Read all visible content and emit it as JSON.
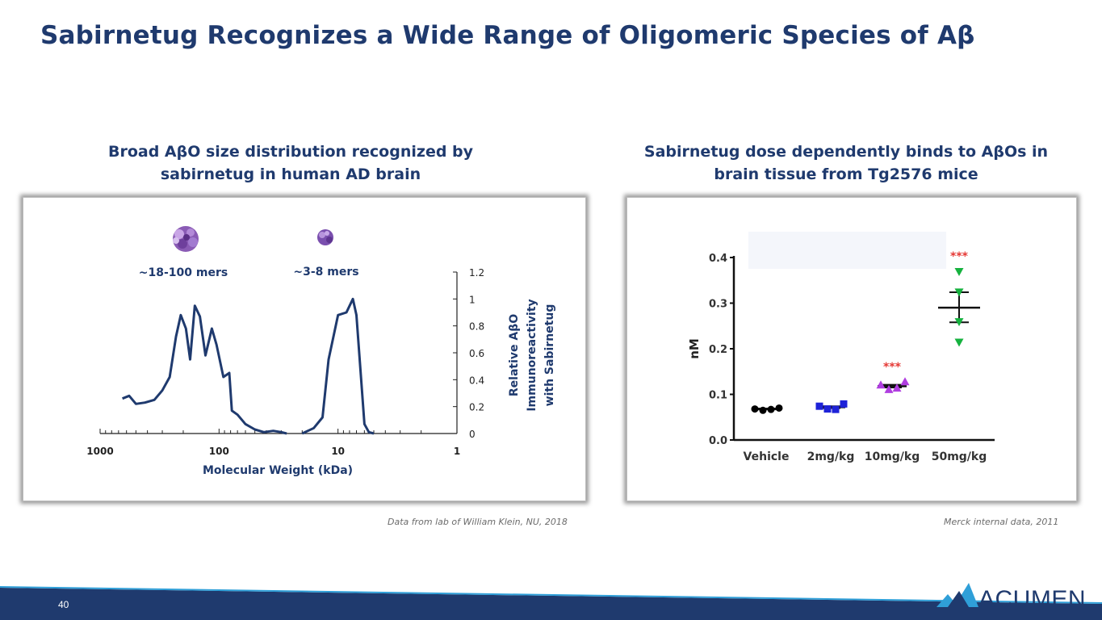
{
  "slide": {
    "title": "Sabirnetug Recognizes a Wide Range of Oligomeric Species of Aβ",
    "page_number": "40",
    "logo_text": "ACUMEN",
    "colors": {
      "navy": "#1f3a6e",
      "accent": "#2f9fd8"
    }
  },
  "left_panel": {
    "heading_line1": "Broad AβO size distribution recognized by",
    "heading_line2": "sabirnetug in human AD brain",
    "label_large": "~18-100 mers",
    "label_small": "~3-8 mers",
    "source": "Data from lab of William Klein, NU, 2018"
  },
  "right_panel": {
    "heading_line1": "Sabirnetug dose dependently binds to AβOs in",
    "heading_line2": "brain tissue from Tg2576 mice",
    "source": "Merck internal data, 2011",
    "significance": "***"
  },
  "chart_data": [
    {
      "type": "line",
      "xlabel": "Molecular Weight (kDa)",
      "ylabel_lines": [
        "Relative AβO",
        "Immunoreactivity",
        "with Sabirnetug"
      ],
      "x_scale": "log",
      "x_reversed": true,
      "x_ticks": [
        "1000",
        "100",
        "10",
        "1"
      ],
      "y_ticks": [
        "0",
        "0.2",
        "0.4",
        "0.6",
        "0.8",
        "1",
        "1.2"
      ],
      "ylim": [
        0,
        1.2
      ],
      "xlim": [
        1000,
        1
      ],
      "line_color": "#1f3a6e",
      "series": [
        {
          "x": [
            650,
            570,
            500,
            420,
            350,
            300,
            260,
            230,
            210,
            190,
            175,
            160,
            145,
            130,
            115,
            105,
            92,
            82,
            78,
            70,
            60,
            50,
            42,
            35,
            30,
            27
          ],
          "y": [
            0.26,
            0.28,
            0.22,
            0.23,
            0.25,
            0.32,
            0.42,
            0.72,
            0.88,
            0.78,
            0.55,
            0.95,
            0.87,
            0.58,
            0.78,
            0.66,
            0.42,
            0.45,
            0.17,
            0.14,
            0.07,
            0.03,
            0.01,
            0.02,
            0.01,
            0.0
          ]
        },
        {
          "x": [
            20,
            16,
            13.5,
            12,
            10,
            8.5,
            7.5,
            7,
            6,
            5.5,
            5
          ],
          "y": [
            0.0,
            0.04,
            0.12,
            0.55,
            0.88,
            0.9,
            1.0,
            0.88,
            0.07,
            0.01,
            0.0
          ]
        }
      ]
    },
    {
      "type": "scatter",
      "categories": [
        "Vehicle",
        "2mg/kg",
        "10mg/kg",
        "50mg/kg"
      ],
      "ylabel": "nM",
      "ylim": [
        0,
        0.4
      ],
      "y_ticks": [
        "0.0",
        "0.1",
        "0.2",
        "0.3",
        "0.4"
      ],
      "groups": [
        {
          "category": "Vehicle",
          "color": "#000000",
          "marker": "circle",
          "values": [
            0.068,
            0.065,
            0.067,
            0.07
          ],
          "mean": 0.068,
          "sem_high": 0.069,
          "sem_low": 0.067,
          "significance": ""
        },
        {
          "category": "2mg/kg",
          "color": "#1e22d8",
          "marker": "square",
          "values": [
            0.074,
            0.068,
            0.067,
            0.079
          ],
          "mean": 0.072,
          "sem_high": 0.074,
          "sem_low": 0.07,
          "significance": ""
        },
        {
          "category": "10mg/kg",
          "color": "#b03ee0",
          "marker": "triangle-up",
          "values": [
            0.12,
            0.11,
            0.113,
            0.127
          ],
          "mean": 0.118,
          "sem_high": 0.121,
          "sem_low": 0.115,
          "significance": "***"
        },
        {
          "category": "50mg/kg",
          "color": "#16b23f",
          "marker": "triangle-down",
          "values": [
            0.37,
            0.325,
            0.26,
            0.215
          ],
          "mean": 0.29,
          "sem_high": 0.324,
          "sem_low": 0.258,
          "significance": "***"
        }
      ]
    }
  ]
}
